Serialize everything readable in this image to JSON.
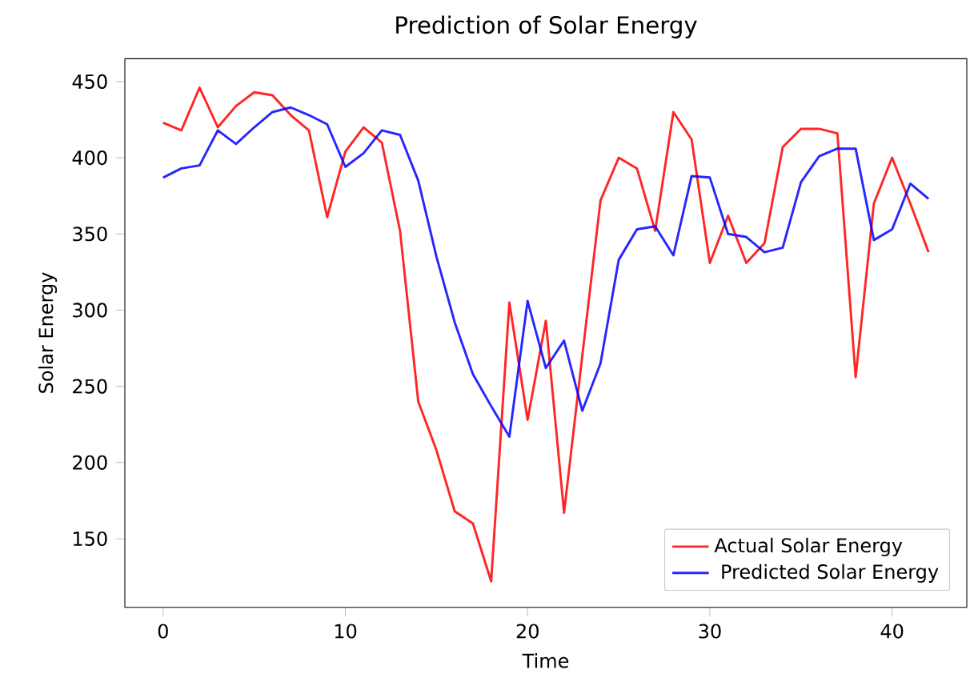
{
  "chart_data": {
    "type": "line",
    "title": "Prediction of Solar Energy",
    "xlabel": "Time",
    "ylabel": "Solar Energy",
    "x": [
      0,
      1,
      2,
      3,
      4,
      5,
      6,
      7,
      8,
      9,
      10,
      11,
      12,
      13,
      14,
      15,
      16,
      17,
      18,
      19,
      20,
      21,
      22,
      23,
      24,
      25,
      26,
      27,
      28,
      29,
      30,
      31,
      32,
      33,
      34,
      35,
      36,
      37,
      38,
      39,
      40,
      41,
      42
    ],
    "series": [
      {
        "name": "Actual Solar Energy",
        "color": "#ff0000",
        "values": [
          423,
          418,
          446,
          420,
          434,
          443,
          441,
          428,
          418,
          361,
          404,
          420,
          410,
          352,
          240,
          208,
          168,
          160,
          122,
          305,
          228,
          293,
          167,
          270,
          372,
          400,
          393,
          352,
          430,
          412,
          331,
          362,
          331,
          344,
          407,
          419,
          419,
          416,
          256,
          370,
          400,
          370,
          338
        ]
      },
      {
        "name": "  Predicted Solar Energy",
        "color": "#0000ff",
        "values": [
          387,
          393,
          395,
          418,
          409,
          420,
          430,
          433,
          428,
          422,
          394,
          403,
          418,
          415,
          385,
          335,
          292,
          258,
          237,
          217,
          306,
          262,
          280,
          234,
          265,
          333,
          353,
          355,
          336,
          388,
          387,
          350,
          348,
          338,
          341,
          384,
          401,
          406,
          406,
          346,
          353,
          383,
          373
        ]
      }
    ],
    "xlim": [
      -2.1,
      44.1
    ],
    "ylim": [
      105,
      465
    ],
    "xticks": [
      0,
      10,
      20,
      30,
      40
    ],
    "yticks": [
      150,
      200,
      250,
      300,
      350,
      400,
      450
    ],
    "legend": "bottom right",
    "grid": false,
    "line_style": "solid",
    "marker": "none"
  }
}
